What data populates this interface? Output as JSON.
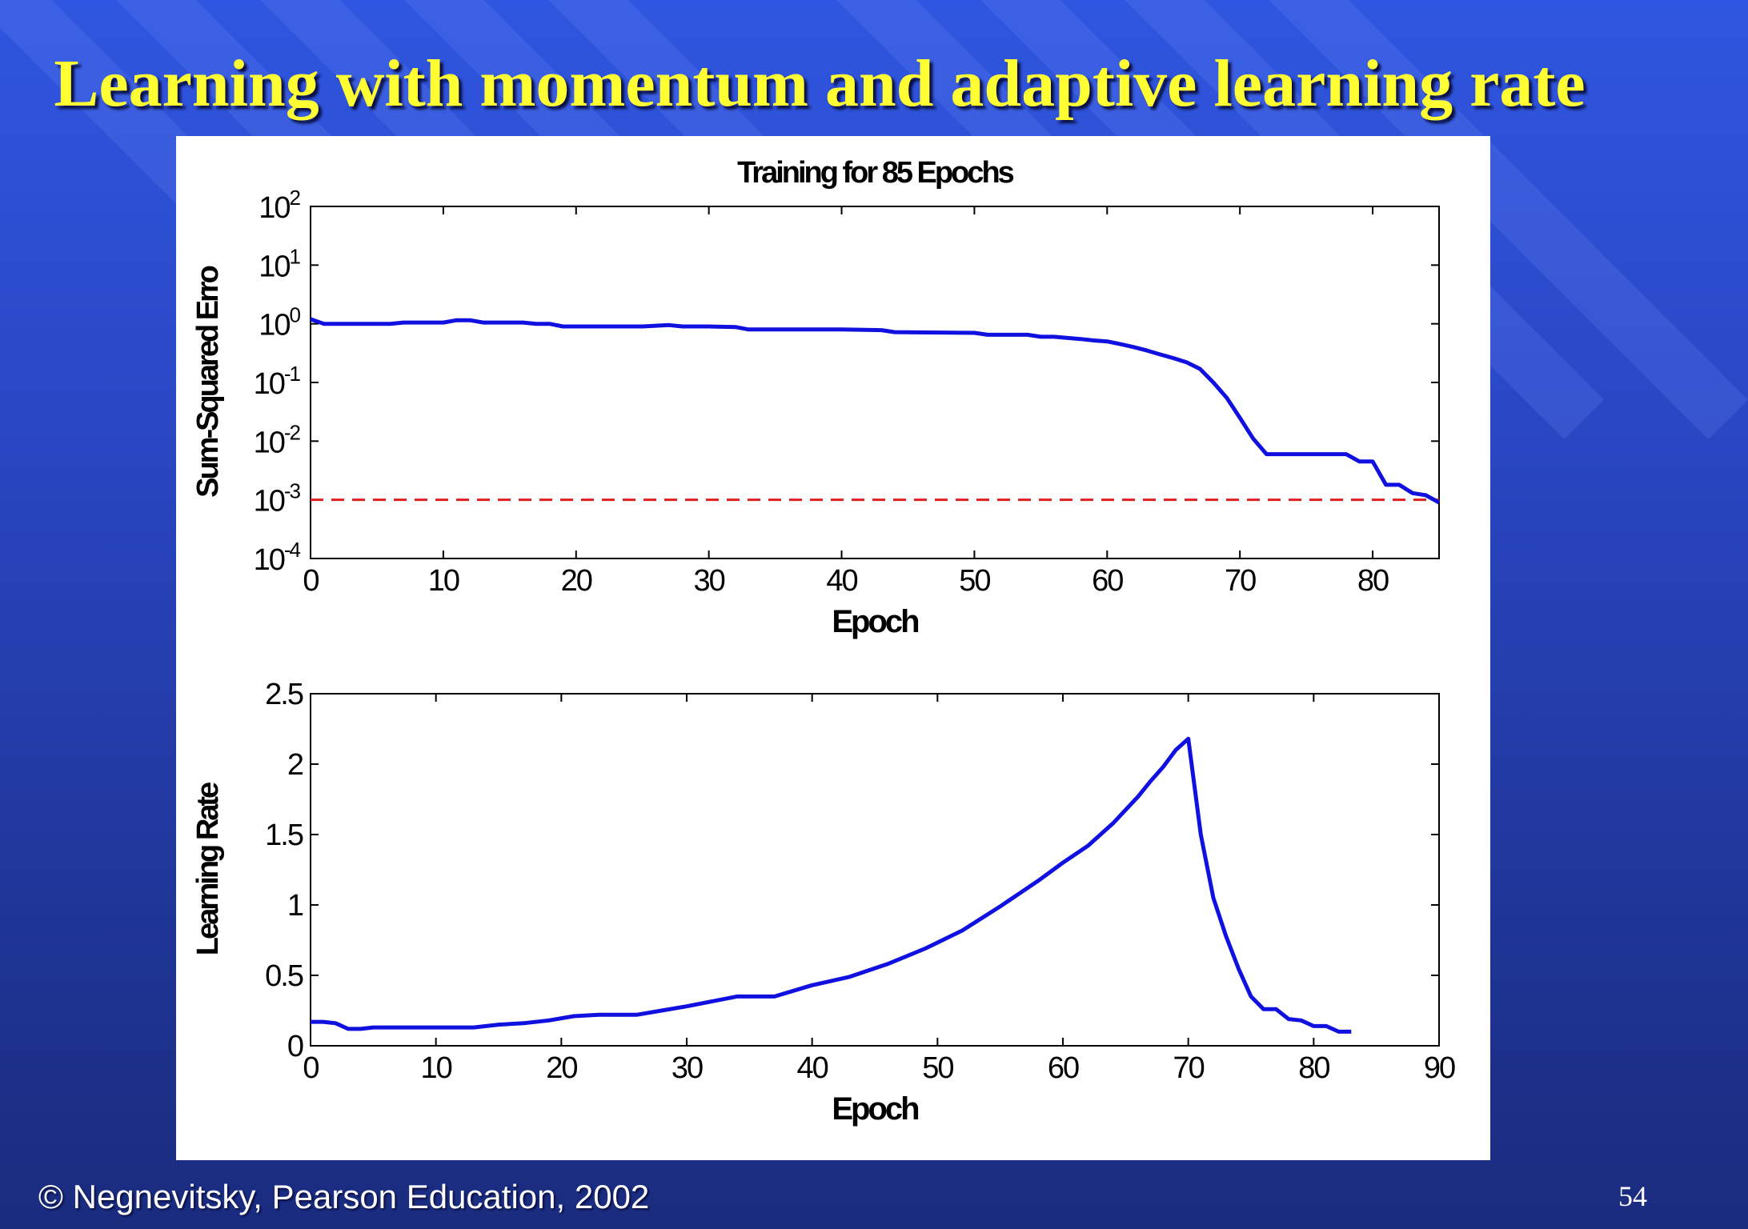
{
  "slide": {
    "title": "Learning with momentum and adaptive learning rate",
    "footer": "© Negnevitsky, Pearson Education, 2002",
    "page_number": "54"
  },
  "colors": {
    "title": "#ffff33",
    "line": "#1010e0",
    "goal_line": "#e02020",
    "axis": "#000000"
  },
  "chart_data": [
    {
      "type": "line",
      "title": "Training for 85 Epochs",
      "xlabel": "Epoch",
      "ylabel": "Sum-Squared Erro",
      "yscale": "log",
      "xlim": [
        0,
        85
      ],
      "ylim": [
        0.0001,
        100
      ],
      "xticks": [
        0,
        10,
        20,
        30,
        40,
        50,
        60,
        70,
        80
      ],
      "yticks": [
        {
          "value": 100,
          "base": "10",
          "exp": "2"
        },
        {
          "value": 10,
          "base": "10",
          "exp": "1"
        },
        {
          "value": 1,
          "base": "10",
          "exp": "0"
        },
        {
          "value": 0.1,
          "base": "10",
          "exp": "-1"
        },
        {
          "value": 0.01,
          "base": "10",
          "exp": "-2"
        },
        {
          "value": 0.001,
          "base": "10",
          "exp": "-3"
        },
        {
          "value": 0.0001,
          "base": "10",
          "exp": "-4"
        }
      ],
      "goal": 0.001,
      "x": [
        0,
        1,
        2,
        3,
        4,
        5,
        6,
        7,
        8,
        9,
        10,
        11,
        12,
        13,
        14,
        15,
        16,
        17,
        18,
        19,
        20,
        25,
        27,
        28,
        30,
        32,
        33,
        35,
        40,
        43,
        44,
        50,
        51,
        54,
        55,
        56,
        58,
        59,
        60,
        61,
        62,
        63,
        64,
        65,
        66,
        67,
        68,
        69,
        70,
        71,
        72,
        73,
        75,
        77,
        78,
        79,
        80,
        81,
        82,
        83,
        84,
        85
      ],
      "y": [
        1.2,
        1.0,
        1.0,
        1.0,
        1.0,
        1.0,
        1.0,
        1.05,
        1.05,
        1.05,
        1.05,
        1.15,
        1.15,
        1.05,
        1.05,
        1.05,
        1.05,
        1.0,
        1.0,
        0.9,
        0.9,
        0.9,
        0.95,
        0.9,
        0.9,
        0.88,
        0.8,
        0.8,
        0.8,
        0.78,
        0.72,
        0.7,
        0.65,
        0.65,
        0.6,
        0.6,
        0.55,
        0.52,
        0.5,
        0.45,
        0.4,
        0.35,
        0.3,
        0.26,
        0.22,
        0.17,
        0.1,
        0.055,
        0.025,
        0.011,
        0.006,
        0.006,
        0.006,
        0.006,
        0.006,
        0.0045,
        0.0045,
        0.0018,
        0.0018,
        0.0013,
        0.0012,
        0.0009
      ]
    },
    {
      "type": "line",
      "title": "",
      "xlabel": "Epoch",
      "ylabel": "Learning Rate",
      "yscale": "linear",
      "xlim": [
        0,
        90
      ],
      "ylim": [
        0,
        2.5
      ],
      "xticks": [
        0,
        10,
        20,
        30,
        40,
        50,
        60,
        70,
        80,
        90
      ],
      "yticks": [
        {
          "value": 0,
          "label": "0"
        },
        {
          "value": 0.5,
          "label": "0.5"
        },
        {
          "value": 1,
          "label": "1"
        },
        {
          "value": 1.5,
          "label": "1.5"
        },
        {
          "value": 2,
          "label": "2"
        },
        {
          "value": 2.5,
          "label": "2.5"
        }
      ],
      "x": [
        0,
        1,
        2,
        3,
        4,
        5,
        13,
        15,
        17,
        19,
        21,
        23,
        26,
        28,
        30,
        34,
        37,
        40,
        43,
        46,
        49,
        52,
        55,
        58,
        60,
        62,
        64,
        66,
        67,
        68,
        69,
        70,
        71,
        72,
        73,
        74,
        75,
        76,
        77,
        78,
        79,
        80,
        81,
        82,
        83
      ],
      "y": [
        0.17,
        0.17,
        0.16,
        0.12,
        0.12,
        0.13,
        0.13,
        0.15,
        0.16,
        0.18,
        0.21,
        0.22,
        0.22,
        0.25,
        0.28,
        0.35,
        0.35,
        0.43,
        0.49,
        0.58,
        0.69,
        0.82,
        0.99,
        1.17,
        1.3,
        1.42,
        1.58,
        1.77,
        1.88,
        1.98,
        2.1,
        2.18,
        1.5,
        1.05,
        0.78,
        0.55,
        0.35,
        0.26,
        0.26,
        0.19,
        0.18,
        0.14,
        0.14,
        0.1,
        0.1
      ]
    }
  ]
}
